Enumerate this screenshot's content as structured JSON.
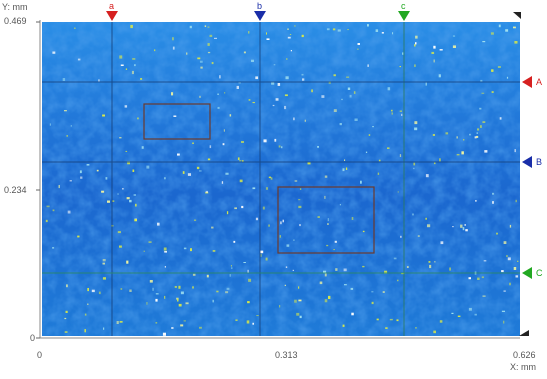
{
  "axes": {
    "y_label": "Y: mm",
    "x_label": "X: mm",
    "y_ticks": [
      "0.469",
      "0.234",
      "0"
    ],
    "x_ticks": [
      "0",
      "0.313",
      "0.626"
    ]
  },
  "vertical_cursors": [
    {
      "label": "a",
      "color": "#d62020"
    },
    {
      "label": "b",
      "color": "#1a2ea8"
    },
    {
      "label": "c",
      "color": "#22a822"
    }
  ],
  "horizontal_cursors": [
    {
      "label": "A",
      "color": "#d62020"
    },
    {
      "label": "B",
      "color": "#1a2ea8"
    },
    {
      "label": "C",
      "color": "#22a822"
    }
  ],
  "colors": {
    "map_base": "#1f7fdc",
    "map_dark": "#1656c4",
    "map_light": "#38b2f2",
    "speckle": "#d8e84a",
    "roi_box": "#7a4a3a"
  }
}
